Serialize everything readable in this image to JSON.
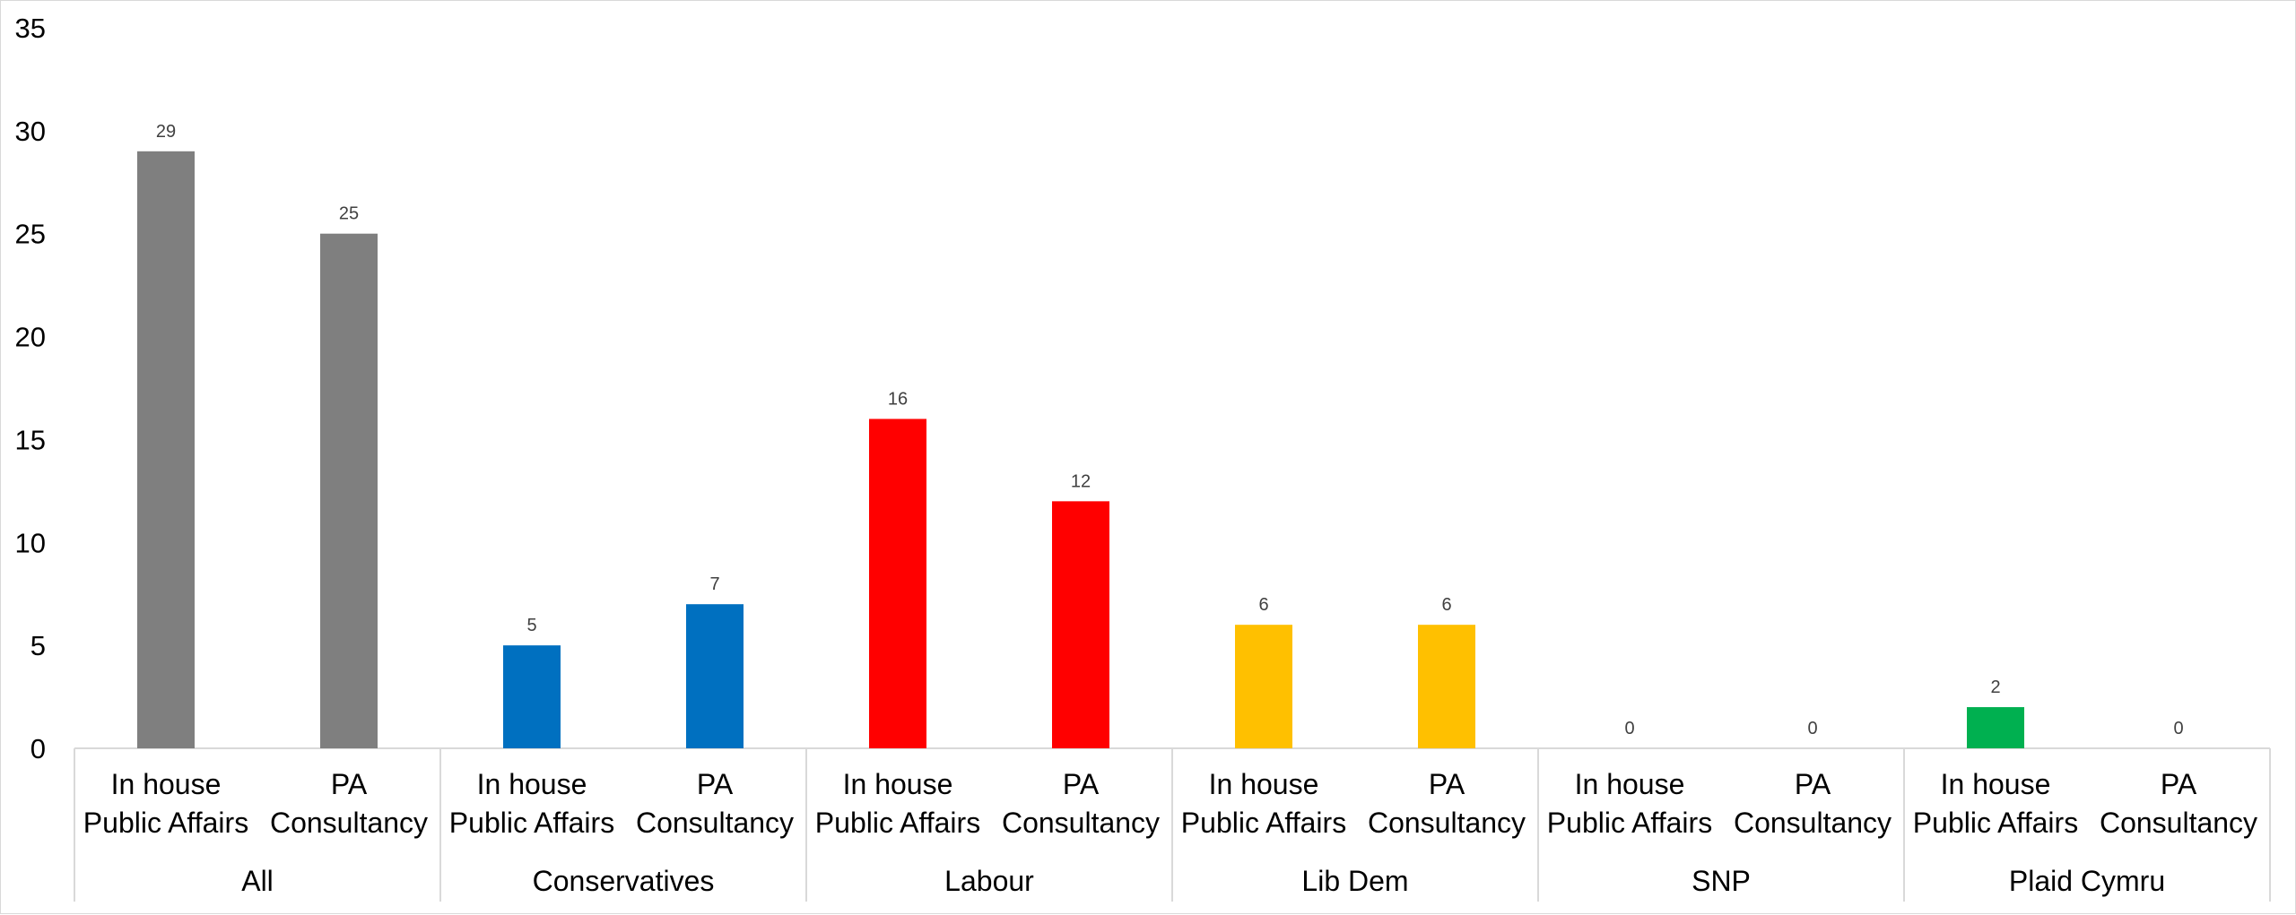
{
  "chart_data": {
    "type": "bar",
    "title": "",
    "xlabel": "",
    "ylabel": "",
    "ylim": [
      0,
      35
    ],
    "yticks": [
      0,
      5,
      10,
      15,
      20,
      25,
      30,
      35
    ],
    "grid": false,
    "legend": "none",
    "subcategory_lines": [
      [
        "In house",
        "Public Affairs"
      ],
      [
        "PA",
        "Consultancy"
      ]
    ],
    "groups": [
      {
        "name": "All",
        "color": "#7f7f7f",
        "values": [
          29,
          25
        ]
      },
      {
        "name": "Conservatives",
        "color": "#0070c0",
        "values": [
          5,
          7
        ]
      },
      {
        "name": "Labour",
        "color": "#ff0000",
        "values": [
          16,
          12
        ]
      },
      {
        "name": "Lib Dem",
        "color": "#ffc000",
        "values": [
          6,
          6
        ]
      },
      {
        "name": "SNP",
        "color": "#ffc000",
        "values": [
          0,
          0
        ]
      },
      {
        "name": "Plaid Cymru",
        "color": "#00b050",
        "values": [
          2,
          0
        ]
      }
    ]
  }
}
